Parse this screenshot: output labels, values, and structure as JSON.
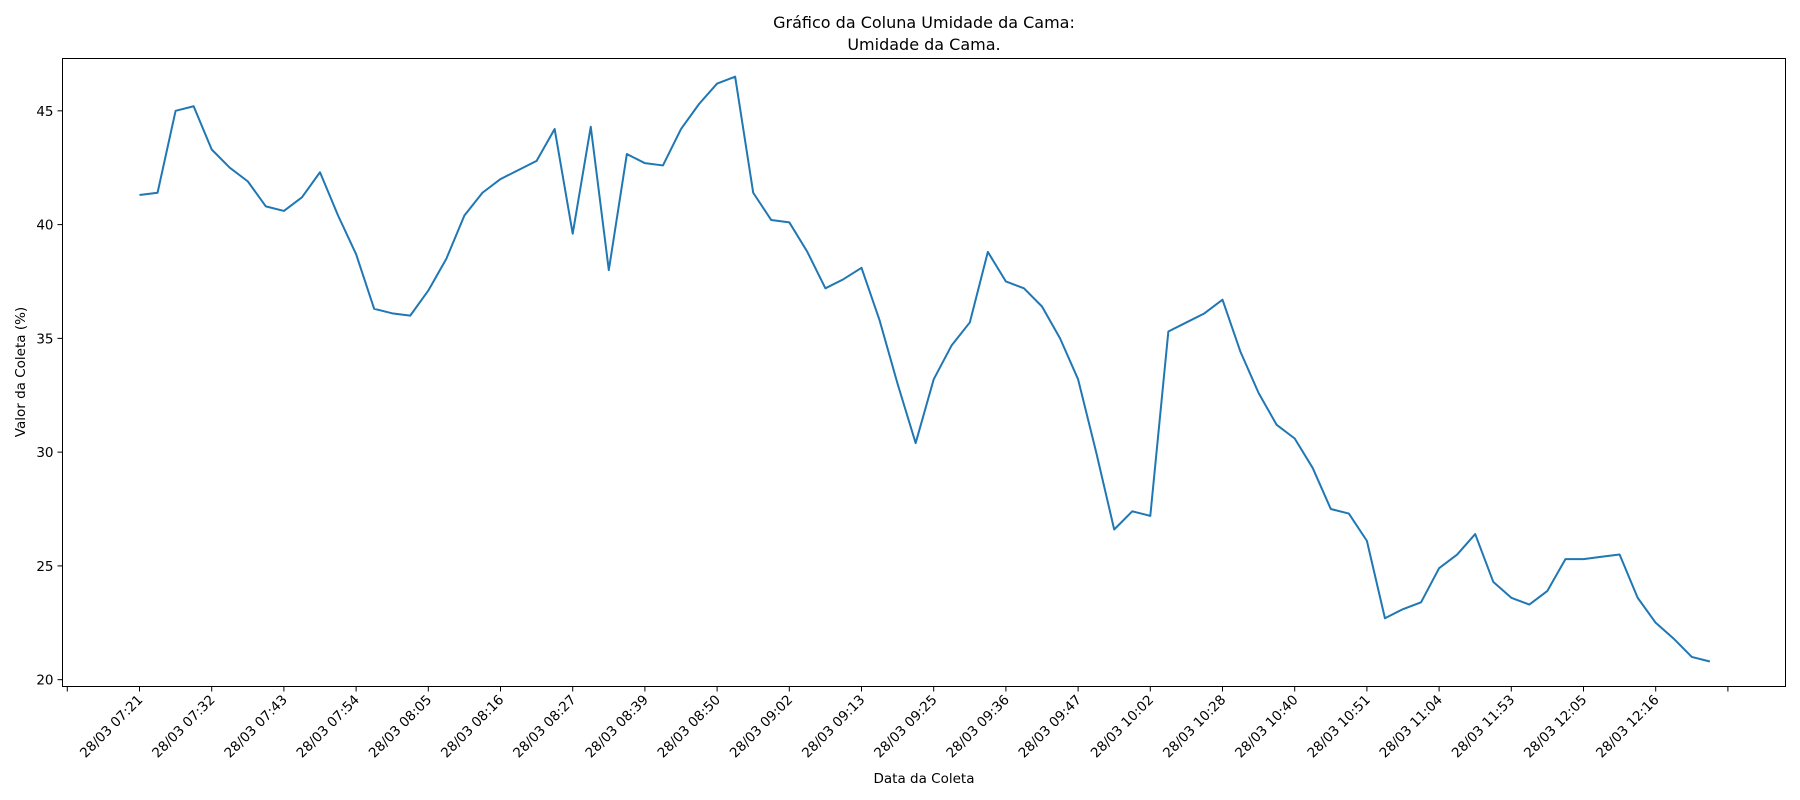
{
  "chart_data": {
    "type": "line",
    "title_line1": "Gráfico da Coluna Umidade da Cama:",
    "title_line2": "Umidade da Cama.",
    "xlabel": "Data da Coleta",
    "ylabel": "Valor da Coleta (%)",
    "ylim": [
      19.7,
      47.3
    ],
    "yticks": [
      20,
      25,
      30,
      35,
      40,
      45
    ],
    "grid": false,
    "line_color": "#1f77b4",
    "x_labels": [
      "28/03 07:21",
      "28/03 07:32",
      "28/03 07:43",
      "28/03 07:54",
      "28/03 08:05",
      "28/03 08:16",
      "28/03 08:27",
      "28/03 08:39",
      "28/03 08:50",
      "28/03 09:02",
      "28/03 09:13",
      "28/03 09:25",
      "28/03 09:36",
      "28/03 09:47",
      "28/03 10:02",
      "28/03 10:28",
      "28/03 10:40",
      "28/03 10:51",
      "28/03 11:04",
      "28/03 11:53",
      "28/03 12:05",
      "28/03 12:16"
    ],
    "values": [
      41.3,
      41.4,
      45.0,
      45.2,
      43.3,
      42.5,
      41.9,
      40.8,
      40.6,
      41.2,
      42.3,
      40.4,
      38.7,
      36.3,
      36.1,
      36.0,
      37.1,
      38.5,
      40.4,
      41.4,
      42.0,
      42.4,
      42.8,
      44.2,
      39.6,
      44.3,
      38.0,
      43.1,
      42.7,
      42.6,
      44.2,
      45.3,
      46.2,
      46.5,
      41.4,
      40.2,
      40.1,
      38.8,
      37.2,
      37.6,
      38.1,
      35.8,
      33.0,
      30.4,
      33.2,
      34.7,
      35.7,
      38.8,
      37.5,
      37.2,
      36.4,
      35.0,
      33.2,
      30.0,
      26.6,
      27.4,
      27.2,
      35.3,
      35.7,
      36.1,
      36.7,
      34.4,
      32.6,
      31.2,
      30.6,
      29.3,
      27.5,
      27.3,
      26.1,
      22.7,
      23.1,
      23.4,
      24.9,
      25.5,
      26.4,
      24.3,
      23.6,
      23.3,
      23.9,
      25.3,
      25.3,
      25.4,
      25.5,
      23.6,
      22.5,
      21.8,
      21.0,
      20.8
    ]
  }
}
